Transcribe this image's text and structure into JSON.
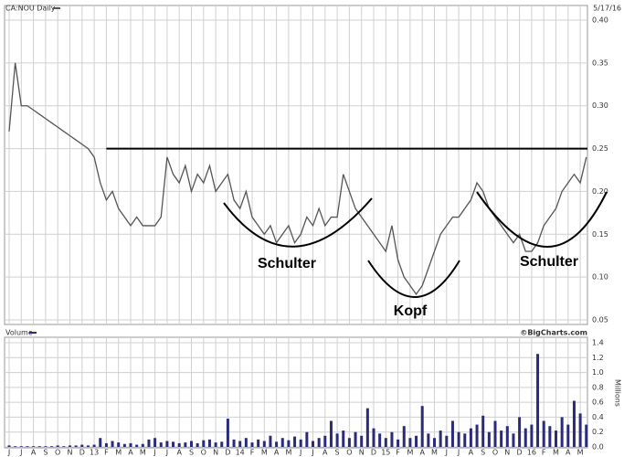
{
  "chart_data": [
    {
      "type": "line",
      "title": "CA:NOU Daily",
      "date": "5/17/16",
      "color": "#555555",
      "categories": [
        "J",
        null,
        "J",
        null,
        "A",
        null,
        "S",
        null,
        "O",
        null,
        "N",
        null,
        "D",
        null,
        "13",
        null,
        "F",
        null,
        "M",
        null,
        "A",
        null,
        "M",
        null,
        "J",
        null,
        "J",
        null,
        "A",
        null,
        "S",
        null,
        "O",
        null,
        "N",
        null,
        "D",
        null,
        "14",
        null,
        "F",
        null,
        "M",
        null,
        "A",
        null,
        "M",
        null,
        "J",
        null,
        "J",
        null,
        "A",
        null,
        "S",
        null,
        "O",
        null,
        "N",
        null,
        "D",
        null,
        "15",
        null,
        "F",
        null,
        "M",
        null,
        "A",
        null,
        "M",
        null,
        "J",
        null,
        "J",
        null,
        "A",
        null,
        "S",
        null,
        "O",
        null,
        "N",
        null,
        "D",
        null,
        "16",
        null,
        "F",
        null,
        "M",
        null,
        "A",
        null,
        "M",
        null
      ],
      "values": [
        0.27,
        0.35,
        0.3,
        0.3,
        0.295,
        0.29,
        0.285,
        0.28,
        0.275,
        0.27,
        0.265,
        0.26,
        0.255,
        0.25,
        0.24,
        0.21,
        0.19,
        0.2,
        0.18,
        0.17,
        0.16,
        0.17,
        0.16,
        0.16,
        0.16,
        0.17,
        0.24,
        0.22,
        0.21,
        0.23,
        0.2,
        0.22,
        0.21,
        0.23,
        0.2,
        0.21,
        0.22,
        0.19,
        0.18,
        0.2,
        0.17,
        0.16,
        0.15,
        0.16,
        0.14,
        0.15,
        0.16,
        0.14,
        0.15,
        0.17,
        0.16,
        0.18,
        0.16,
        0.17,
        0.17,
        0.22,
        0.2,
        0.18,
        0.17,
        0.16,
        0.15,
        0.14,
        0.13,
        0.16,
        0.12,
        0.1,
        0.09,
        0.08,
        0.09,
        0.11,
        0.13,
        0.15,
        0.16,
        0.17,
        0.17,
        0.18,
        0.19,
        0.21,
        0.2,
        0.18,
        0.17,
        0.16,
        0.15,
        0.14,
        0.15,
        0.13,
        0.13,
        0.14,
        0.16,
        0.17,
        0.18,
        0.2,
        0.21,
        0.22,
        0.21,
        0.24
      ],
      "ylim": [
        0.05,
        0.4
      ],
      "yticks": [
        {
          "value": 0.05,
          "label": "0.05"
        },
        {
          "value": 0.1,
          "label": "0.10"
        },
        {
          "value": 0.15,
          "label": "0.15"
        },
        {
          "value": 0.2,
          "label": "0.20"
        },
        {
          "value": 0.25,
          "label": "0.25"
        },
        {
          "value": 0.3,
          "label": "0.30"
        },
        {
          "value": 0.35,
          "label": "0.35"
        },
        {
          "value": 0.4,
          "label": "0.40"
        }
      ],
      "resistance": 0.25,
      "annotations": [
        "Schulter",
        "Kopf",
        "Schulter"
      ],
      "grid": true
    },
    {
      "type": "bar",
      "name": "Volume",
      "credit": "©BigCharts.com",
      "ylabel": "Millions",
      "color": "#2b2b7a",
      "values": [
        0.02,
        0.01,
        0.01,
        0.01,
        0.01,
        0.01,
        0.01,
        0.01,
        0.02,
        0.01,
        0.02,
        0.02,
        0.03,
        0.02,
        0.03,
        0.12,
        0.05,
        0.08,
        0.06,
        0.04,
        0.05,
        0.03,
        0.04,
        0.1,
        0.12,
        0.06,
        0.08,
        0.07,
        0.05,
        0.06,
        0.08,
        0.05,
        0.09,
        0.1,
        0.06,
        0.07,
        0.38,
        0.1,
        0.08,
        0.12,
        0.06,
        0.1,
        0.08,
        0.15,
        0.07,
        0.12,
        0.09,
        0.14,
        0.1,
        0.2,
        0.08,
        0.12,
        0.15,
        0.35,
        0.18,
        0.22,
        0.12,
        0.2,
        0.15,
        0.52,
        0.25,
        0.18,
        0.12,
        0.2,
        0.1,
        0.28,
        0.12,
        0.15,
        0.55,
        0.18,
        0.12,
        0.22,
        0.15,
        0.35,
        0.2,
        0.18,
        0.25,
        0.3,
        0.42,
        0.2,
        0.35,
        0.22,
        0.28,
        0.18,
        0.4,
        0.25,
        0.3,
        1.25,
        0.35,
        0.28,
        0.22,
        0.4,
        0.3,
        0.62,
        0.45,
        0.3
      ],
      "ylim": [
        0,
        1.4
      ],
      "yticks": [
        {
          "value": 0,
          "label": "0.0"
        },
        0.2,
        0.4,
        0.6,
        0.8,
        {
          "value": 1,
          "label": "1.0"
        },
        1.2,
        1.4
      ],
      "grid": true
    }
  ]
}
